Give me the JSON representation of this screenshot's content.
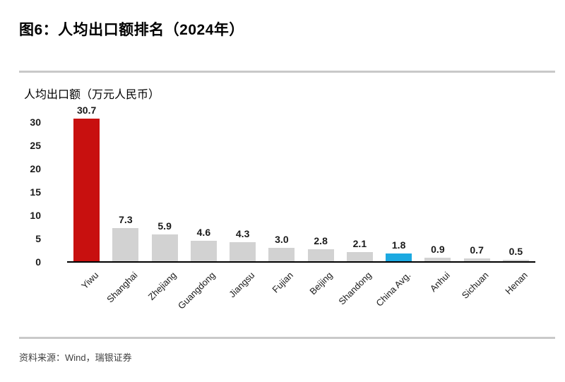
{
  "title": "图6：人均出口额排名（2024年）",
  "source_note": "资料来源：Wind，瑞银证券",
  "colors": {
    "highlight_red": "#c8100f",
    "highlight_blue": "#1ca9e1",
    "bar_gray": "#d2d2d2",
    "axis_line": "#000000",
    "rule_gray": "#c9c9c9"
  },
  "chart_data": {
    "type": "bar",
    "title": "",
    "ylabel": "人均出口额（万元人民币）",
    "xlabel": "",
    "categories": [
      "Yiwu",
      "Shanghai",
      "Zhejiang",
      "Guangdong",
      "Jiangsu",
      "Fujian",
      "Beijing",
      "Shandong",
      "China Avg.",
      "Anhui",
      "Sichuan",
      "Henan"
    ],
    "values": [
      30.7,
      7.3,
      5.9,
      4.6,
      4.3,
      3.0,
      2.8,
      2.1,
      1.8,
      0.9,
      0.7,
      0.5
    ],
    "value_labels": [
      "30.7",
      "7.3",
      "5.9",
      "4.6",
      "4.3",
      "3.0",
      "2.8",
      "2.1",
      "1.8",
      "0.9",
      "0.7",
      "0.5"
    ],
    "bar_colors": [
      "#c8100f",
      "#d2d2d2",
      "#d2d2d2",
      "#d2d2d2",
      "#d2d2d2",
      "#d2d2d2",
      "#d2d2d2",
      "#d2d2d2",
      "#1ca9e1",
      "#d2d2d2",
      "#d2d2d2",
      "#d2d2d2"
    ],
    "ylim": [
      0,
      30.7
    ],
    "yticks": [
      0,
      5,
      10,
      15,
      20,
      25,
      30
    ],
    "grid": false,
    "legend": "none",
    "x_label_rotation_deg": -45
  }
}
